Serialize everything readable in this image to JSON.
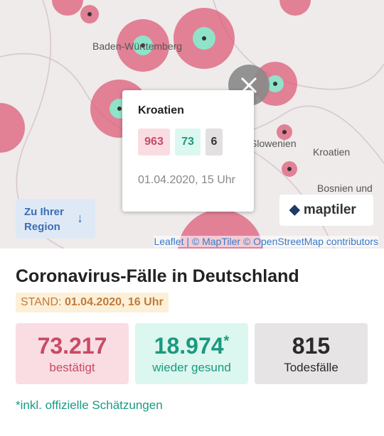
{
  "map": {
    "labels": [
      "Baden-Württemberg",
      "Slowenien",
      "Kroatien",
      "Bosnien und"
    ],
    "popup": {
      "title": "Kroatien",
      "confirmed": "963",
      "recovered": "73",
      "deaths": "6",
      "date": "01.04.2020, 15 Uhr"
    },
    "region_button": "Zu Ihrer Region",
    "logo": "maptiler",
    "attribution": "Leaflet | © MapTiler © OpenStreetMap contributors"
  },
  "panel": {
    "title": "Coronavirus-Fälle in Deutschland",
    "stand_label": "STAND:",
    "stand_value": "01.04.2020, 16 Uhr",
    "stats": [
      {
        "value": "73.217",
        "label": "bestätigt"
      },
      {
        "value": "18.974",
        "mark": "*",
        "label": "wieder gesund"
      },
      {
        "value": "815",
        "label": "Todesfälle"
      }
    ],
    "footnote": "*inkl. offizielle Schätzungen"
  }
}
